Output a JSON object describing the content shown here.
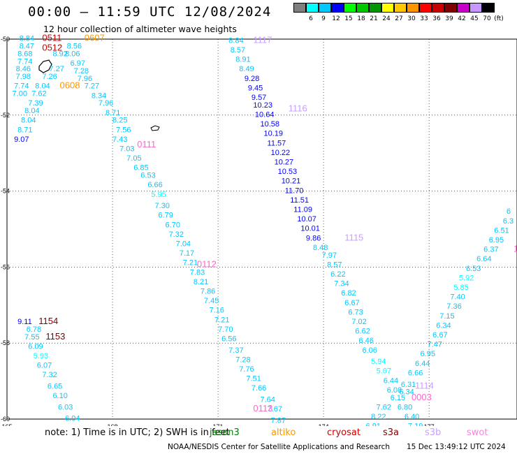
{
  "header": {
    "title": "00:00 – 11:59 UTC 12/08/2024",
    "subtitle": "12 hour collection of altimeter wave heights"
  },
  "legend": {
    "unit": "(ft)",
    "bins": [
      {
        "label": "3",
        "color": "#7f7f7f"
      },
      {
        "label": "6",
        "color": "#00ffff"
      },
      {
        "label": "9",
        "color": "#00c8ff"
      },
      {
        "label": "12",
        "color": "#0000ff"
      },
      {
        "label": "15",
        "color": "#00ff00"
      },
      {
        "label": "18",
        "color": "#00c800"
      },
      {
        "label": "21",
        "color": "#009600"
      },
      {
        "label": "24",
        "color": "#ffff00"
      },
      {
        "label": "27",
        "color": "#ffc800"
      },
      {
        "label": "30",
        "color": "#ff9600"
      },
      {
        "label": "33",
        "color": "#ff0000"
      },
      {
        "label": "36",
        "color": "#c80000"
      },
      {
        "label": "39",
        "color": "#800000"
      },
      {
        "label": "42",
        "color": "#c800c8"
      },
      {
        "label": "45",
        "color": "#c896ff"
      },
      {
        "label": "70",
        "color": "#000000"
      }
    ]
  },
  "map": {
    "lon_ticks": [
      "165",
      "168",
      "171",
      "174",
      "177"
    ],
    "lat_ticks": [
      "-50",
      "-52",
      "-54",
      "-56",
      "-58",
      "-60"
    ],
    "lon_range": [
      165,
      179.5
    ],
    "lat_range": [
      -50,
      -60
    ],
    "pass_labels": [
      {
        "text": "0511",
        "color": "#cc0000",
        "lon": 166.0,
        "lat": -50.05
      },
      {
        "text": "0512",
        "color": "#cc0000",
        "lon": 166.0,
        "lat": -50.3
      },
      {
        "text": "0607",
        "color": "#ff9600",
        "lon": 167.2,
        "lat": -50.05
      },
      {
        "text": "0608",
        "color": "#ff9600",
        "lon": 166.5,
        "lat": -51.3
      },
      {
        "text": "0111",
        "color": "#ff66cc",
        "lon": 168.7,
        "lat": -52.85
      },
      {
        "text": "0112",
        "color": "#ff66cc",
        "lon": 170.4,
        "lat": -56.0
      },
      {
        "text": "0113",
        "color": "#ff66cc",
        "lon": 172.0,
        "lat": -59.8
      },
      {
        "text": "1117",
        "color": "#c8a0ff",
        "lon": 172.0,
        "lat": -50.1
      },
      {
        "text": "1116",
        "color": "#c8a0ff",
        "lon": 173.0,
        "lat": -51.9
      },
      {
        "text": "1115",
        "color": "#c8a0ff",
        "lon": 174.6,
        "lat": -55.3
      },
      {
        "text": "1114",
        "color": "#c8a0ff",
        "lon": 176.6,
        "lat": -59.2
      },
      {
        "text": "0003",
        "color": "#ff66cc",
        "lon": 176.5,
        "lat": -59.5
      },
      {
        "text": "1154",
        "color": "#800000",
        "lon": 165.9,
        "lat": -57.5
      },
      {
        "text": "1153",
        "color": "#800000",
        "lon": 166.1,
        "lat": -57.9
      },
      {
        "text": "100",
        "color": "#ff66cc",
        "lon": 179.4,
        "lat": -55.6
      }
    ],
    "observations": [
      {
        "v": "8.84",
        "c": "#00c8ff",
        "lon": 165.35,
        "lat": -50.05
      },
      {
        "v": "8.47",
        "c": "#00c8ff",
        "lon": 165.35,
        "lat": -50.25
      },
      {
        "v": "8.68",
        "c": "#00c8ff",
        "lon": 165.3,
        "lat": -50.45
      },
      {
        "v": "7.74",
        "c": "#00c8ff",
        "lon": 165.3,
        "lat": -50.65
      },
      {
        "v": "8.46",
        "c": "#00c8ff",
        "lon": 165.25,
        "lat": -50.85
      },
      {
        "v": "7.98",
        "c": "#00c8ff",
        "lon": 165.25,
        "lat": -51.05
      },
      {
        "v": "7.74",
        "c": "#00c8ff",
        "lon": 165.2,
        "lat": -51.3
      },
      {
        "v": "7.00",
        "c": "#00c8ff",
        "lon": 165.15,
        "lat": -51.5
      },
      {
        "v": "8.56",
        "c": "#00c8ff",
        "lon": 166.7,
        "lat": -50.25
      },
      {
        "v": "8.06",
        "c": "#00c8ff",
        "lon": 166.65,
        "lat": -50.45
      },
      {
        "v": "8.92",
        "c": "#00c8ff",
        "lon": 166.3,
        "lat": -50.45
      },
      {
        "v": "6.97",
        "c": "#00c8ff",
        "lon": 166.8,
        "lat": -50.7
      },
      {
        "v": "7.27",
        "c": "#00c8ff",
        "lon": 166.2,
        "lat": -50.85
      },
      {
        "v": "7.28",
        "c": "#00c8ff",
        "lon": 166.9,
        "lat": -50.9
      },
      {
        "v": "7.26",
        "c": "#00c8ff",
        "lon": 166.0,
        "lat": -51.05
      },
      {
        "v": "7.96",
        "c": "#00c8ff",
        "lon": 167.0,
        "lat": -51.1
      },
      {
        "v": "8.04",
        "c": "#00c8ff",
        "lon": 165.8,
        "lat": -51.3
      },
      {
        "v": "7.27",
        "c": "#00c8ff",
        "lon": 167.2,
        "lat": -51.3
      },
      {
        "v": "7.62",
        "c": "#00c8ff",
        "lon": 165.7,
        "lat": -51.5
      },
      {
        "v": "8.34",
        "c": "#00c8ff",
        "lon": 167.4,
        "lat": -51.55
      },
      {
        "v": "7.39",
        "c": "#00c8ff",
        "lon": 165.6,
        "lat": -51.75
      },
      {
        "v": "7.96",
        "c": "#00c8ff",
        "lon": 167.6,
        "lat": -51.75
      },
      {
        "v": "8.04",
        "c": "#00c8ff",
        "lon": 165.5,
        "lat": -51.95
      },
      {
        "v": "8.71",
        "c": "#00c8ff",
        "lon": 167.8,
        "lat": -52.0
      },
      {
        "v": "8.04",
        "c": "#00c8ff",
        "lon": 165.4,
        "lat": -52.2
      },
      {
        "v": "8.25",
        "c": "#00c8ff",
        "lon": 168.0,
        "lat": -52.2
      },
      {
        "v": "8.71",
        "c": "#00c8ff",
        "lon": 165.3,
        "lat": -52.45
      },
      {
        "v": "7.56",
        "c": "#00c8ff",
        "lon": 168.1,
        "lat": -52.45
      },
      {
        "v": "9.07",
        "c": "#0000ff",
        "lon": 165.2,
        "lat": -52.7
      },
      {
        "v": "7.43",
        "c": "#00c8ff",
        "lon": 168.0,
        "lat": -52.7
      },
      {
        "v": "7.03",
        "c": "#00c8ff",
        "lon": 168.2,
        "lat": -52.95
      },
      {
        "v": "7.05",
        "c": "#00c8ff",
        "lon": 168.4,
        "lat": -53.2
      },
      {
        "v": "6.85",
        "c": "#00c8ff",
        "lon": 168.6,
        "lat": -53.45
      },
      {
        "v": "6.53",
        "c": "#00c8ff",
        "lon": 168.8,
        "lat": -53.65
      },
      {
        "v": "6.66",
        "c": "#00c8ff",
        "lon": 169.0,
        "lat": -53.9
      },
      {
        "v": "5.95",
        "c": "#00ffff",
        "lon": 169.1,
        "lat": -54.15
      },
      {
        "v": "7.30",
        "c": "#00c8ff",
        "lon": 169.2,
        "lat": -54.45
      },
      {
        "v": "6.79",
        "c": "#00c8ff",
        "lon": 169.3,
        "lat": -54.7
      },
      {
        "v": "6.70",
        "c": "#00c8ff",
        "lon": 169.5,
        "lat": -54.95
      },
      {
        "v": "7.32",
        "c": "#00c8ff",
        "lon": 169.6,
        "lat": -55.2
      },
      {
        "v": "7.04",
        "c": "#00c8ff",
        "lon": 169.8,
        "lat": -55.45
      },
      {
        "v": "7.17",
        "c": "#00c8ff",
        "lon": 169.9,
        "lat": -55.7
      },
      {
        "v": "7.21",
        "c": "#00c8ff",
        "lon": 170.0,
        "lat": -55.95
      },
      {
        "v": "7.83",
        "c": "#00c8ff",
        "lon": 170.2,
        "lat": -56.2
      },
      {
        "v": "8.21",
        "c": "#00c8ff",
        "lon": 170.3,
        "lat": -56.45
      },
      {
        "v": "7.86",
        "c": "#00c8ff",
        "lon": 170.5,
        "lat": -56.7
      },
      {
        "v": "7.45",
        "c": "#00c8ff",
        "lon": 170.6,
        "lat": -56.95
      },
      {
        "v": "7.16",
        "c": "#00c8ff",
        "lon": 170.75,
        "lat": -57.2
      },
      {
        "v": "7.21",
        "c": "#00c8ff",
        "lon": 170.9,
        "lat": -57.45
      },
      {
        "v": "7.70",
        "c": "#00c8ff",
        "lon": 171.0,
        "lat": -57.7
      },
      {
        "v": "6.56",
        "c": "#00c8ff",
        "lon": 171.1,
        "lat": -57.95
      },
      {
        "v": "7.37",
        "c": "#00c8ff",
        "lon": 171.3,
        "lat": -58.25
      },
      {
        "v": "7.28",
        "c": "#00c8ff",
        "lon": 171.5,
        "lat": -58.5
      },
      {
        "v": "7.76",
        "c": "#00c8ff",
        "lon": 171.6,
        "lat": -58.75
      },
      {
        "v": "7.51",
        "c": "#00c8ff",
        "lon": 171.8,
        "lat": -59.0
      },
      {
        "v": "7.66",
        "c": "#00c8ff",
        "lon": 171.95,
        "lat": -59.25
      },
      {
        "v": "7.64",
        "c": "#00c8ff",
        "lon": 172.2,
        "lat": -59.55
      },
      {
        "v": "7.67",
        "c": "#00c8ff",
        "lon": 172.4,
        "lat": -59.8
      },
      {
        "v": "7.87",
        "c": "#00c8ff",
        "lon": 172.5,
        "lat": -60.1
      },
      {
        "v": "7.76",
        "c": "#00c8ff",
        "lon": 172.6,
        "lat": -60.35
      },
      {
        "v": "8.84",
        "c": "#00c8ff",
        "lon": 171.3,
        "lat": -50.1
      },
      {
        "v": "8.57",
        "c": "#00c8ff",
        "lon": 171.35,
        "lat": -50.35
      },
      {
        "v": "8.91",
        "c": "#00c8ff",
        "lon": 171.5,
        "lat": -50.6
      },
      {
        "v": "8.49",
        "c": "#00c8ff",
        "lon": 171.6,
        "lat": -50.85
      },
      {
        "v": "9.28",
        "c": "#0000ff",
        "lon": 171.75,
        "lat": -51.1
      },
      {
        "v": "9.45",
        "c": "#0000ff",
        "lon": 171.85,
        "lat": -51.35
      },
      {
        "v": "9.57",
        "c": "#0000ff",
        "lon": 171.95,
        "lat": -51.6
      },
      {
        "v": "10.23",
        "c": "#0000ff",
        "lon": 172.0,
        "lat": -51.8
      },
      {
        "v": "10.64",
        "c": "#0000ff",
        "lon": 172.05,
        "lat": -52.05
      },
      {
        "v": "10.58",
        "c": "#0000ff",
        "lon": 172.2,
        "lat": -52.3
      },
      {
        "v": "10.19",
        "c": "#0000ff",
        "lon": 172.3,
        "lat": -52.55
      },
      {
        "v": "11.57",
        "c": "#0000ff",
        "lon": 172.4,
        "lat": -52.8
      },
      {
        "v": "10.22",
        "c": "#0000ff",
        "lon": 172.5,
        "lat": -53.05
      },
      {
        "v": "10.27",
        "c": "#0000ff",
        "lon": 172.6,
        "lat": -53.3
      },
      {
        "v": "10.53",
        "c": "#0000ff",
        "lon": 172.7,
        "lat": -53.55
      },
      {
        "v": "10.21",
        "c": "#0000ff",
        "lon": 172.8,
        "lat": -53.8
      },
      {
        "v": "11.70",
        "c": "#0000ff",
        "lon": 172.9,
        "lat": -54.05
      },
      {
        "v": "11.51",
        "c": "#0000ff",
        "lon": 173.05,
        "lat": -54.3
      },
      {
        "v": "11.09",
        "c": "#0000ff",
        "lon": 173.15,
        "lat": -54.55
      },
      {
        "v": "10.07",
        "c": "#0000ff",
        "lon": 173.25,
        "lat": -54.8
      },
      {
        "v": "10.01",
        "c": "#0000ff",
        "lon": 173.35,
        "lat": -55.05
      },
      {
        "v": "9.86",
        "c": "#0000ff",
        "lon": 173.5,
        "lat": -55.3
      },
      {
        "v": "8.48",
        "c": "#00c8ff",
        "lon": 173.7,
        "lat": -55.55
      },
      {
        "v": "7.97",
        "c": "#00c8ff",
        "lon": 173.95,
        "lat": -55.75
      },
      {
        "v": "8.57",
        "c": "#00c8ff",
        "lon": 174.1,
        "lat": -56.0
      },
      {
        "v": "6.22",
        "c": "#00c8ff",
        "lon": 174.2,
        "lat": -56.25
      },
      {
        "v": "7.34",
        "c": "#00c8ff",
        "lon": 174.3,
        "lat": -56.5
      },
      {
        "v": "6.82",
        "c": "#00c8ff",
        "lon": 174.5,
        "lat": -56.75
      },
      {
        "v": "6.67",
        "c": "#00c8ff",
        "lon": 174.6,
        "lat": -57.0
      },
      {
        "v": "6.73",
        "c": "#00c8ff",
        "lon": 174.7,
        "lat": -57.25
      },
      {
        "v": "7.02",
        "c": "#00c8ff",
        "lon": 174.8,
        "lat": -57.5
      },
      {
        "v": "6.62",
        "c": "#00c8ff",
        "lon": 174.9,
        "lat": -57.75
      },
      {
        "v": "6.46",
        "c": "#00c8ff",
        "lon": 175.0,
        "lat": -58.0
      },
      {
        "v": "6.06",
        "c": "#00c8ff",
        "lon": 175.1,
        "lat": -58.25
      },
      {
        "v": "5.94",
        "c": "#00ffff",
        "lon": 175.35,
        "lat": -58.55
      },
      {
        "v": "5.67",
        "c": "#00ffff",
        "lon": 175.5,
        "lat": -58.8
      },
      {
        "v": "6.44",
        "c": "#00c8ff",
        "lon": 175.7,
        "lat": -59.05
      },
      {
        "v": "6.08",
        "c": "#00c8ff",
        "lon": 175.8,
        "lat": -59.3
      },
      {
        "v": "6.15",
        "c": "#00c8ff",
        "lon": 175.9,
        "lat": -59.5
      },
      {
        "v": "7.62",
        "c": "#00c8ff",
        "lon": 175.5,
        "lat": -59.75
      },
      {
        "v": "8.22",
        "c": "#00c8ff",
        "lon": 175.35,
        "lat": -60.0
      },
      {
        "v": "6.91",
        "c": "#00c8ff",
        "lon": 175.2,
        "lat": -60.25
      },
      {
        "v": "7.63",
        "c": "#00c8ff",
        "lon": 175.0,
        "lat": -60.5
      },
      {
        "v": "7.12",
        "c": "#00c8ff",
        "lon": 174.9,
        "lat": -60.75
      },
      {
        "v": "6.31",
        "c": "#00c8ff",
        "lon": 176.2,
        "lat": -59.15
      },
      {
        "v": "6.34",
        "c": "#00c8ff",
        "lon": 176.15,
        "lat": -59.35
      },
      {
        "v": "6.80",
        "c": "#00c8ff",
        "lon": 176.1,
        "lat": -59.75
      },
      {
        "v": "6.40",
        "c": "#00c8ff",
        "lon": 176.3,
        "lat": -60.0
      },
      {
        "v": "7.19",
        "c": "#00c8ff",
        "lon": 176.4,
        "lat": -60.25
      },
      {
        "v": "6.42",
        "c": "#00c8ff",
        "lon": 176.5,
        "lat": -60.5
      },
      {
        "v": "7.41",
        "c": "#00c8ff",
        "lon": 176.6,
        "lat": -60.75
      },
      {
        "v": "6.66",
        "c": "#00c8ff",
        "lon": 176.4,
        "lat": -58.85
      },
      {
        "v": "6.44",
        "c": "#00c8ff",
        "lon": 176.6,
        "lat": -58.6
      },
      {
        "v": "6.95",
        "c": "#00c8ff",
        "lon": 176.75,
        "lat": -58.35
      },
      {
        "v": "7.47",
        "c": "#00c8ff",
        "lon": 176.95,
        "lat": -58.1
      },
      {
        "v": "6.67",
        "c": "#00c8ff",
        "lon": 177.1,
        "lat": -57.85
      },
      {
        "v": "6.34",
        "c": "#00c8ff",
        "lon": 177.2,
        "lat": -57.6
      },
      {
        "v": "7.15",
        "c": "#00c8ff",
        "lon": 177.3,
        "lat": -57.35
      },
      {
        "v": "7.36",
        "c": "#00c8ff",
        "lon": 177.5,
        "lat": -57.1
      },
      {
        "v": "7.40",
        "c": "#00c8ff",
        "lon": 177.6,
        "lat": -56.85
      },
      {
        "v": "5.85",
        "c": "#00ffff",
        "lon": 177.7,
        "lat": -56.6
      },
      {
        "v": "5.92",
        "c": "#00ffff",
        "lon": 177.85,
        "lat": -56.35
      },
      {
        "v": "6.53",
        "c": "#00c8ff",
        "lon": 178.05,
        "lat": -56.1
      },
      {
        "v": "6.64",
        "c": "#00c8ff",
        "lon": 178.35,
        "lat": -55.85
      },
      {
        "v": "6.37",
        "c": "#00c8ff",
        "lon": 178.55,
        "lat": -55.6
      },
      {
        "v": "6.95",
        "c": "#00c8ff",
        "lon": 178.7,
        "lat": -55.35
      },
      {
        "v": "6.51",
        "c": "#00c8ff",
        "lon": 178.85,
        "lat": -55.1
      },
      {
        "v": "6.3",
        "c": "#00c8ff",
        "lon": 179.1,
        "lat": -54.85
      },
      {
        "v": "6",
        "c": "#00c8ff",
        "lon": 179.2,
        "lat": -54.6
      },
      {
        "v": "9.11",
        "c": "#0000ff",
        "lon": 165.3,
        "lat": -57.5
      },
      {
        "v": "6.78",
        "c": "#00c8ff",
        "lon": 165.55,
        "lat": -57.7
      },
      {
        "v": "7.55",
        "c": "#00c8ff",
        "lon": 165.5,
        "lat": -57.9
      },
      {
        "v": "6.09",
        "c": "#00c8ff",
        "lon": 165.6,
        "lat": -58.15
      },
      {
        "v": "5.93",
        "c": "#00ffff",
        "lon": 165.75,
        "lat": -58.4
      },
      {
        "v": "6.07",
        "c": "#00c8ff",
        "lon": 165.85,
        "lat": -58.65
      },
      {
        "v": "7.32",
        "c": "#00c8ff",
        "lon": 166.0,
        "lat": -58.9
      },
      {
        "v": "6.65",
        "c": "#00c8ff",
        "lon": 166.15,
        "lat": -59.2
      },
      {
        "v": "6.10",
        "c": "#00c8ff",
        "lon": 166.3,
        "lat": -59.45
      },
      {
        "v": "6.03",
        "c": "#00c8ff",
        "lon": 166.45,
        "lat": -59.75
      },
      {
        "v": "6.04",
        "c": "#00c8ff",
        "lon": 166.65,
        "lat": -60.05
      },
      {
        "v": "6.66",
        "c": "#00c8ff",
        "lon": 166.85,
        "lat": -60.35
      },
      {
        "v": "6.25",
        "c": "#00c8ff",
        "lon": 167.05,
        "lat": -60.6
      }
    ]
  },
  "footer": {
    "note": "note:  1) Time is in UTC; 2) SWH is in feet",
    "satellites": [
      {
        "name": "jason3",
        "color": "#008000"
      },
      {
        "name": "altiko",
        "color": "#ff9600"
      },
      {
        "name": "cryosat",
        "color": "#cc0000"
      },
      {
        "name": "s3a",
        "color": "#800000"
      },
      {
        "name": "s3b",
        "color": "#c8a0ff"
      },
      {
        "name": "swot",
        "color": "#ff80e0"
      }
    ],
    "credit": "NOAA/NESDIS Center for Satellite Applications and Research",
    "timestamp": "15 Dec 13:49:12 UTC 2024"
  }
}
